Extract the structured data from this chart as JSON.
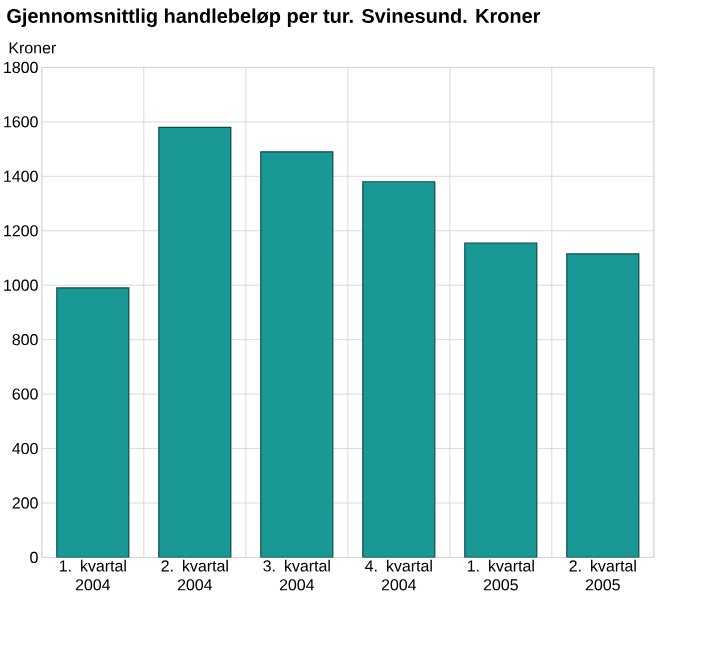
{
  "chart_data": {
    "type": "bar",
    "title": "Gjennomsnittlig handlebeløp per tur. Svinesund. Kroner",
    "ylabel": "Kroner",
    "categories": [
      "1. kvartal 2004",
      "2. kvartal 2004",
      "3. kvartal 2004",
      "4. kvartal 2004",
      "1. kvartal 2005",
      "2. kvartal 2005"
    ],
    "values": [
      990,
      1580,
      1490,
      1380,
      1155,
      1115
    ],
    "color": "#1a9896",
    "ylim": [
      0,
      1800
    ],
    "yticks": [
      0,
      200,
      400,
      600,
      800,
      1000,
      1200,
      1400,
      1600,
      1800
    ],
    "grid": true
  }
}
